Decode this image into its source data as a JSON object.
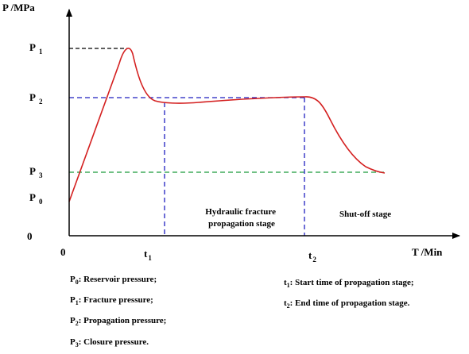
{
  "axes": {
    "y_label": "P /MPa",
    "x_label": "T /Min",
    "origin_label": "0",
    "y_zero_label": "0"
  },
  "pressure_levels": {
    "p1": {
      "base": "P",
      "sub": "1"
    },
    "p2": {
      "base": "P",
      "sub": "2"
    },
    "p3": {
      "base": "P",
      "sub": "3"
    },
    "p0": {
      "base": "P",
      "sub": "0"
    }
  },
  "time_marks": {
    "t1": {
      "base": "t",
      "sub": "1"
    },
    "t2": {
      "base": "t",
      "sub": "2"
    }
  },
  "stages": {
    "propagation": [
      "Hydraulic fracture",
      "propagation stage"
    ],
    "shutoff": "Shut-off stage"
  },
  "legend_left": [
    {
      "sym": "P",
      "sub": "0",
      "text": ": Reservoir pressure;"
    },
    {
      "sym": "P",
      "sub": "1",
      "text": ": Fracture pressure;"
    },
    {
      "sym": "P",
      "sub": "2",
      "text": ": Propagation pressure;"
    },
    {
      "sym": "P",
      "sub": "3",
      "text": ": Closure pressure."
    }
  ],
  "legend_right": [
    {
      "sym": "t",
      "sub": "1",
      "text": ": Start time of propagation stage;"
    },
    {
      "sym": "t",
      "sub": "2",
      "text": ": End time of propagation stage."
    }
  ],
  "colors": {
    "curve": "#d42020",
    "guide_blue": "#1f1fbf",
    "guide_green": "#1a9a3a",
    "guide_black": "#000000",
    "axis": "#000000"
  }
}
